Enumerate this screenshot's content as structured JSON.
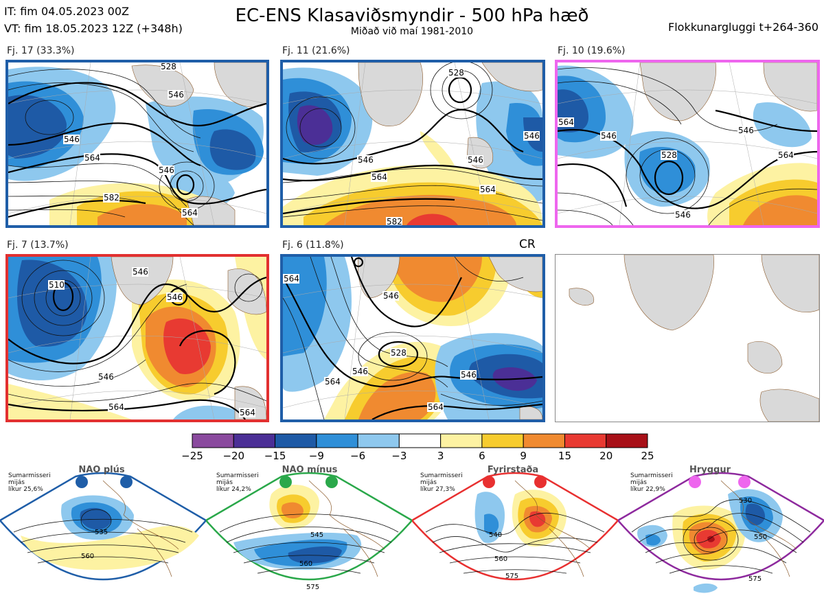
{
  "header": {
    "init_time": "IT: fim 04.05.2023 00Z",
    "valid_time": "VT: fim 18.05.2023 12Z  (+348h)",
    "title": "EC-ENS Klasaviðsmyndir - 500 hPa hæð",
    "subtitle": "Miðað við maí 1981-2010",
    "window": "Flokkunargluggi t+264-360"
  },
  "clusters": [
    {
      "label": "Fj. 17 (33.3%)",
      "color": "#1f5ea8",
      "contours": [
        "528",
        "546",
        "546",
        "564",
        "546",
        "582",
        "564"
      ]
    },
    {
      "label": "Fj. 11 (21.6%)",
      "color": "#1f5ea8",
      "contours": [
        "528",
        "546",
        "546",
        "564",
        "564",
        "582",
        "546"
      ]
    },
    {
      "label": "Fj. 10 (19.6%)",
      "color": "#ee66ee",
      "contours": [
        "528",
        "546",
        "546",
        "564",
        "546",
        "564"
      ]
    },
    {
      "label": "Fj. 7 (13.7%)",
      "color": "#e23030",
      "contours": [
        "510",
        "546",
        "546",
        "546",
        "564",
        "564"
      ]
    },
    {
      "label": "Fj. 6 (11.8%)",
      "color": "#1f5ea8",
      "contours": [
        "564",
        "546",
        "528",
        "546",
        "546",
        "564",
        "564"
      ]
    }
  ],
  "cr_label": "CR",
  "colorbar": {
    "ticks": [
      "−25",
      "−20",
      "−15",
      "−9",
      "−6",
      "−3",
      "3",
      "6",
      "9",
      "15",
      "20",
      "25"
    ],
    "colors": [
      "#8a4a9e",
      "#4b2f96",
      "#1e5aa6",
      "#2f8fd8",
      "#8ec8ee",
      "#ffffff",
      "#fdf2a2",
      "#f7cc2e",
      "#f08a30",
      "#e83a32",
      "#a81018"
    ]
  },
  "regimes": [
    {
      "name": "NAO plús",
      "color": "#1f5ea8",
      "season": "Sumarmisseri",
      "period": "mijás",
      "prob": "líkur 25,6%",
      "contours": [
        "535",
        "560"
      ]
    },
    {
      "name": "NAO mínus",
      "color": "#2aa84a",
      "season": "Sumarmisseri",
      "period": "mijás",
      "prob": "líkur 24,2%",
      "contours": [
        "545",
        "560",
        "575"
      ]
    },
    {
      "name": "Fyrirstaða",
      "color": "#e83030",
      "season": "Sumarmisseri",
      "period": "mijás",
      "prob": "líkur 27,3%",
      "contours": [
        "540",
        "560",
        "575"
      ]
    },
    {
      "name": "Hryggur",
      "color": "#8e2a9e",
      "season": "Sumarmisseri",
      "period": "mijás",
      "prob": "líkur 22,9%",
      "contours": [
        "530",
        "550",
        "575"
      ]
    }
  ]
}
